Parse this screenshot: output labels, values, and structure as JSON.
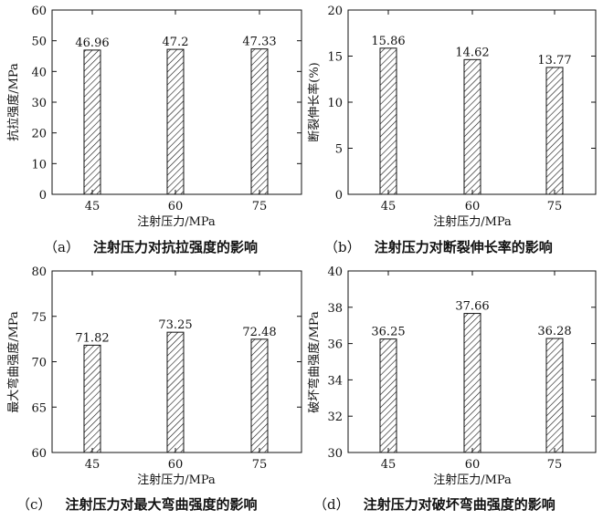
{
  "chart_data": [
    {
      "type": "bar",
      "id": "a",
      "categories": [
        "45",
        "60",
        "75"
      ],
      "values": [
        46.96,
        47.2,
        47.33
      ],
      "value_labels": [
        "46.96",
        "47.2",
        "47.33"
      ],
      "xlabel": "注射压力/MPa",
      "ylabel": "抗拉强度/MPa",
      "ylim": [
        0,
        60
      ],
      "yticks": [
        0,
        10,
        20,
        30,
        40,
        50,
        60
      ],
      "caption_letter": "（a）",
      "caption": "注射压力对抗拉强度的影响"
    },
    {
      "type": "bar",
      "id": "b",
      "categories": [
        "45",
        "60",
        "75"
      ],
      "values": [
        15.86,
        14.62,
        13.77
      ],
      "value_labels": [
        "15.86",
        "14.62",
        "13.77"
      ],
      "xlabel": "注射压力/MPa",
      "ylabel": "断裂伸长率(%)",
      "ylim": [
        0,
        20
      ],
      "yticks": [
        0,
        5,
        10,
        15,
        20
      ],
      "caption_letter": "（b）",
      "caption": "注射压力对断裂伸长率的影响"
    },
    {
      "type": "bar",
      "id": "c",
      "categories": [
        "45",
        "60",
        "75"
      ],
      "values": [
        71.82,
        73.25,
        72.48
      ],
      "value_labels": [
        "71.82",
        "73.25",
        "72.48"
      ],
      "xlabel": "注射压力/MPa",
      "ylabel": "最大弯曲强度/MPa",
      "ylim": [
        60,
        80
      ],
      "yticks": [
        60,
        65,
        70,
        75,
        80
      ],
      "caption_letter": "（c）",
      "caption": "注射压力对最大弯曲强度的影响"
    },
    {
      "type": "bar",
      "id": "d",
      "categories": [
        "45",
        "60",
        "75"
      ],
      "values": [
        36.25,
        37.66,
        36.28
      ],
      "value_labels": [
        "36.25",
        "37.66",
        "36.28"
      ],
      "xlabel": "注射压力/MPa",
      "ylabel": "破坏弯曲强度/MPa",
      "ylim": [
        30,
        40
      ],
      "yticks": [
        30,
        32,
        34,
        36,
        38,
        40
      ],
      "caption_letter": "（d）",
      "caption": "注射压力对破坏弯曲强度的影响"
    }
  ],
  "colors": {
    "axis": "#111111",
    "bar_fill": "#ffffff",
    "hatch": "#111111"
  }
}
